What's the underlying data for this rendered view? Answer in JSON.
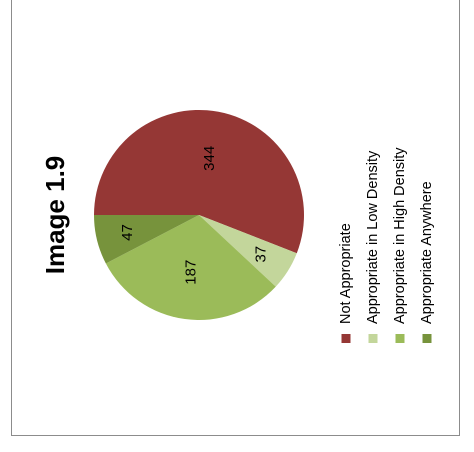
{
  "chart_data": {
    "type": "pie",
    "title": "Image 1.9",
    "legend_position": "right",
    "categories": [
      "Not Appropriate",
      "Appropriate in Low Density",
      "Appropriate in High Density",
      "Appropriate Anywhere"
    ],
    "values": [
      344,
      37,
      187,
      47
    ],
    "colors": [
      "#953735",
      "#c3d69b",
      "#9bbb59",
      "#77933c"
    ]
  }
}
